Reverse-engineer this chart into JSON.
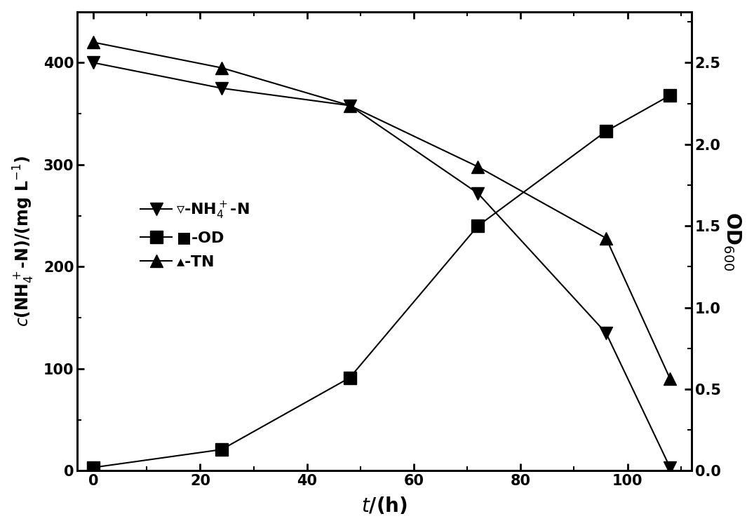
{
  "time": [
    0,
    24,
    48,
    72,
    96,
    108
  ],
  "NH4N": [
    400,
    375,
    358,
    272,
    135,
    3
  ],
  "TN": [
    420,
    395,
    358,
    298,
    228,
    90
  ],
  "OD_right": [
    0.02,
    0.13,
    0.57,
    1.5,
    2.08,
    2.3
  ],
  "left_ylabel": "$c$(NH$_4^+$-N)/(mg L$^{-1}$)",
  "right_ylabel": "OD$_{600}$",
  "xlabel": "$t$/(h)",
  "left_ylim": [
    0,
    450
  ],
  "right_ylim": [
    0,
    2.8125
  ],
  "left_yticks": [
    0,
    100,
    200,
    300,
    400
  ],
  "right_yticks": [
    0.0,
    0.5,
    1.0,
    1.5,
    2.0,
    2.5
  ],
  "xticks": [
    0,
    20,
    40,
    60,
    80,
    100
  ],
  "xlim": [
    -3,
    112
  ],
  "color": "black",
  "linewidth": 1.5,
  "markersize": 13
}
